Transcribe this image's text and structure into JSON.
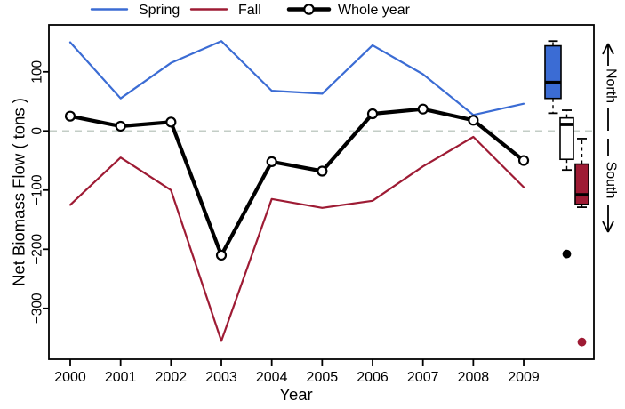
{
  "chart_data": {
    "type": "line",
    "title": "",
    "xlabel": "Year",
    "ylabel": "Net Biomass Flow ( tons )",
    "x": [
      2000,
      2001,
      2002,
      2003,
      2004,
      2005,
      2006,
      2007,
      2008,
      2009
    ],
    "ylim": [
      -386,
      172
    ],
    "yticks": [
      {
        "label": "100",
        "value": 100
      },
      {
        "label": "0",
        "value": 0
      },
      {
        "label": "−100",
        "value": -100
      },
      {
        "label": "−200",
        "value": -200
      },
      {
        "label": "−300",
        "value": -300
      }
    ],
    "zero_line": {
      "style": "dashed",
      "value": 0,
      "color": "#C3CDC6"
    },
    "grid": "off",
    "legend_position": "top",
    "series": [
      {
        "name": "Spring",
        "color": "#3B6CD4",
        "line_width": 2.2,
        "marker": "none",
        "values": [
          150,
          55,
          115,
          152,
          68,
          63,
          145,
          96,
          27,
          46
        ]
      },
      {
        "name": "Fall",
        "color": "#9E1B34",
        "line_width": 2.2,
        "marker": "none",
        "values": [
          -125,
          -45,
          -100,
          -355,
          -115,
          -130,
          -118,
          -60,
          -10,
          -95
        ]
      },
      {
        "name": "Whole year",
        "color": "#000000",
        "line_width": 4.2,
        "marker": "open-circle",
        "values": [
          25,
          8,
          15,
          -210,
          -52,
          -68,
          29,
          37,
          18,
          -50
        ]
      }
    ],
    "boxplots": [
      {
        "name": "Spring",
        "fill": "#3B6CD4",
        "whisker_low": 30,
        "q1": 55,
        "median": 82,
        "q3": 144,
        "whisker_high": 152,
        "outliers": [],
        "outlier_color": "#000000"
      },
      {
        "name": "Whole year",
        "fill": "#FFFFFF",
        "whisker_low": -66,
        "q1": -48,
        "median": 11,
        "q3": 22,
        "whisker_high": 35,
        "outliers": [
          -208
        ],
        "outlier_color": "#000000"
      },
      {
        "name": "Fall",
        "fill": "#9E1B34",
        "whisker_low": -129,
        "q1": -124,
        "median": -108,
        "q3": -56,
        "whisker_high": -13,
        "outliers": [
          -357
        ],
        "outlier_color": "#9E1B34"
      }
    ],
    "annotations": {
      "north": "North",
      "south": "South"
    }
  }
}
